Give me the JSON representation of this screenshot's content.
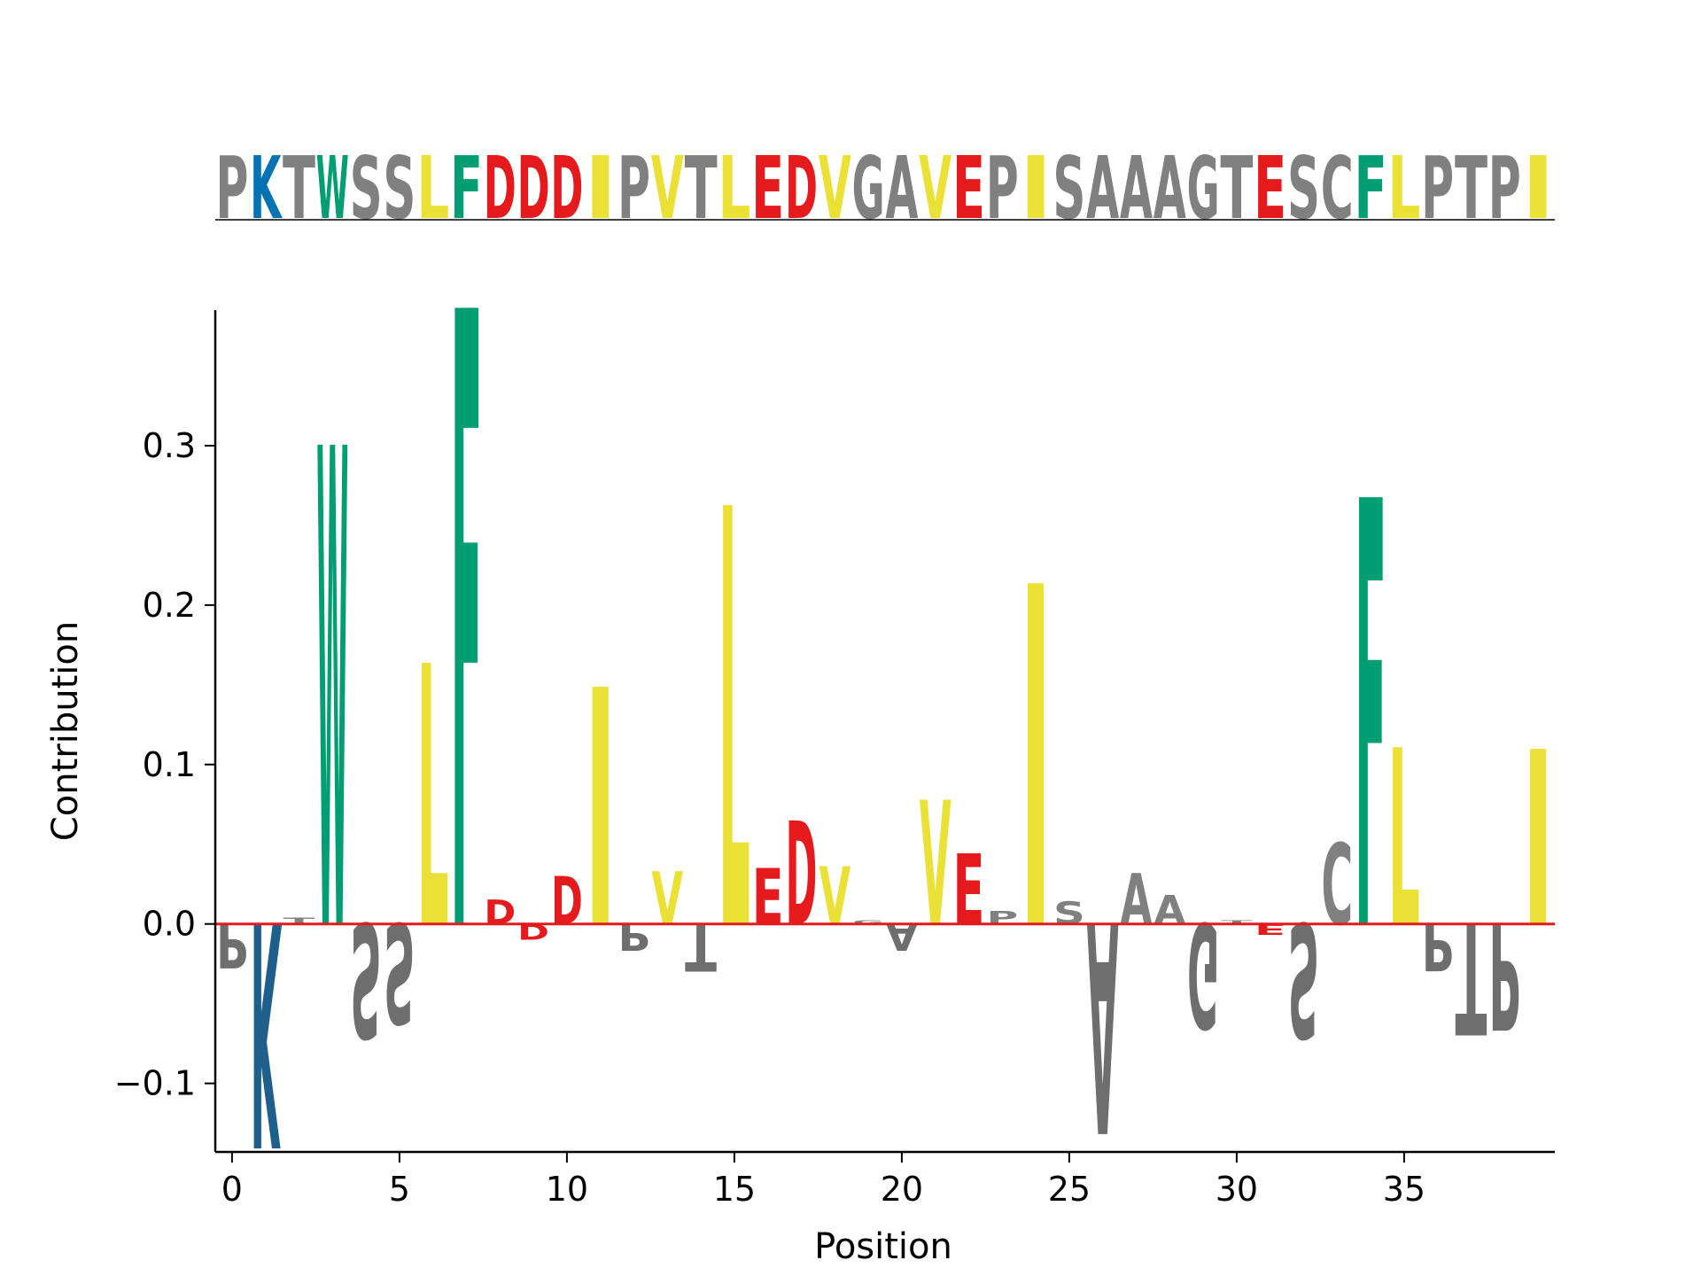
{
  "chart_data": {
    "type": "sequence-logo",
    "sequence": "PKTWSSLFDDDIPVTLEDVGAVEPISAAAGTESCFLPTPI",
    "xlabel": "Position",
    "ylabel": "Contribution",
    "xlim": [
      -0.5,
      39.5
    ],
    "ylim": [
      -0.143,
      0.385
    ],
    "xticks": [
      0,
      5,
      10,
      15,
      20,
      25,
      30,
      35
    ],
    "yticks": [
      -0.1,
      0.0,
      0.1,
      0.2,
      0.3
    ],
    "ytick_labels": [
      "−0.1",
      "0.0",
      "0.1",
      "0.2",
      "0.3"
    ],
    "zero_line_color": "#e41a1c",
    "grid": false,
    "colors": {
      "hydrophobic": "#ebe035",
      "aromatic": "#029e73",
      "acidic": "#e41a1c",
      "basic": "#0173b2",
      "other": "#808080"
    },
    "contributions": [
      {
        "pos": 0,
        "letter": "P",
        "value": -0.028
      },
      {
        "pos": 1,
        "letter": "K",
        "value": -0.141
      },
      {
        "pos": 2,
        "letter": "T",
        "value": 0.004
      },
      {
        "pos": 3,
        "letter": "W",
        "value": 0.301
      },
      {
        "pos": 4,
        "letter": "S",
        "value": -0.072
      },
      {
        "pos": 5,
        "letter": "S",
        "value": -0.063
      },
      {
        "pos": 6,
        "letter": "L",
        "value": 0.164
      },
      {
        "pos": 7,
        "letter": "F",
        "value": 0.387
      },
      {
        "pos": 8,
        "letter": "D",
        "value": 0.015
      },
      {
        "pos": 9,
        "letter": "D",
        "value": -0.01
      },
      {
        "pos": 10,
        "letter": "D",
        "value": 0.03
      },
      {
        "pos": 11,
        "letter": "I",
        "value": 0.149
      },
      {
        "pos": 12,
        "letter": "P",
        "value": -0.017
      },
      {
        "pos": 13,
        "letter": "V",
        "value": 0.033
      },
      {
        "pos": 14,
        "letter": "T",
        "value": -0.03
      },
      {
        "pos": 15,
        "letter": "L",
        "value": 0.263
      },
      {
        "pos": 16,
        "letter": "E",
        "value": 0.035
      },
      {
        "pos": 17,
        "letter": "D",
        "value": 0.065
      },
      {
        "pos": 18,
        "letter": "V",
        "value": 0.036
      },
      {
        "pos": 19,
        "letter": "G",
        "value": 0.002
      },
      {
        "pos": 20,
        "letter": "A",
        "value": -0.017
      },
      {
        "pos": 21,
        "letter": "V",
        "value": 0.078
      },
      {
        "pos": 22,
        "letter": "E",
        "value": 0.044
      },
      {
        "pos": 23,
        "letter": "P",
        "value": 0.008
      },
      {
        "pos": 24,
        "letter": "I",
        "value": 0.214
      },
      {
        "pos": 25,
        "letter": "S",
        "value": 0.014
      },
      {
        "pos": 26,
        "letter": "A",
        "value": -0.132
      },
      {
        "pos": 27,
        "letter": "A",
        "value": 0.032
      },
      {
        "pos": 28,
        "letter": "A",
        "value": 0.018
      },
      {
        "pos": 29,
        "letter": "G",
        "value": -0.066
      },
      {
        "pos": 30,
        "letter": "T",
        "value": 0.002
      },
      {
        "pos": 31,
        "letter": "E",
        "value": -0.007
      },
      {
        "pos": 32,
        "letter": "S",
        "value": -0.072
      },
      {
        "pos": 33,
        "letter": "C",
        "value": 0.051
      },
      {
        "pos": 34,
        "letter": "F",
        "value": 0.268
      },
      {
        "pos": 35,
        "letter": "L",
        "value": 0.111
      },
      {
        "pos": 36,
        "letter": "P",
        "value": -0.03
      },
      {
        "pos": 37,
        "letter": "T",
        "value": -0.07
      },
      {
        "pos": 38,
        "letter": "P",
        "value": -0.067
      },
      {
        "pos": 39,
        "letter": "I",
        "value": 0.11
      }
    ]
  }
}
